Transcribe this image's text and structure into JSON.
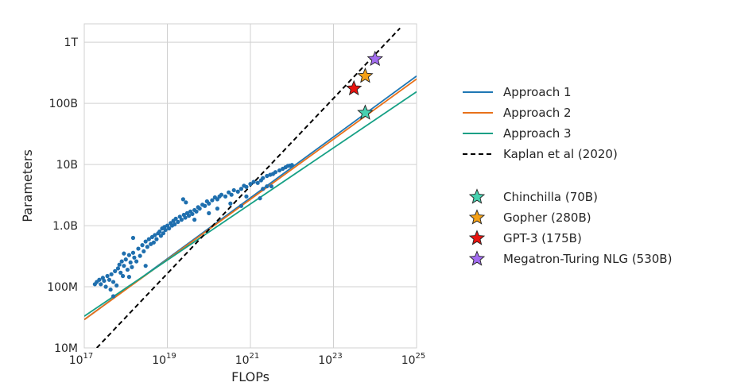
{
  "chart_data": {
    "type": "scatter",
    "xlabel": "FLOPs",
    "ylabel": "Parameters",
    "x_scale": "log",
    "y_scale": "log",
    "xlim": [
      1e+17,
      1e+25
    ],
    "ylim": [
      10000000.0,
      2000000000000.0
    ],
    "grid": true,
    "legend_position": "right",
    "x_ticks": [
      {
        "value": 1e+17,
        "base": "10",
        "exp": "17"
      },
      {
        "value": 1e+19,
        "base": "10",
        "exp": "19"
      },
      {
        "value": 1e+21,
        "base": "10",
        "exp": "21"
      },
      {
        "value": 1e+23,
        "base": "10",
        "exp": "23"
      },
      {
        "value": 1e+25,
        "base": "10",
        "exp": "25"
      }
    ],
    "y_ticks": [
      {
        "value": 10000000.0,
        "label": "10M"
      },
      {
        "value": 100000000.0,
        "label": "100M"
      },
      {
        "value": 1000000000.0,
        "label": "1.0B"
      },
      {
        "value": 10000000000.0,
        "label": "10B"
      },
      {
        "value": 100000000000.0,
        "label": "100B"
      },
      {
        "value": 1000000000000.0,
        "label": "1T"
      }
    ],
    "series": [
      {
        "name": "Approach 1",
        "kind": "line",
        "color": "#1f77b4",
        "style": "solid",
        "x": [
          1e+17,
          1e+25
        ],
        "y": [
          29000000.0,
          280000000000.0
        ]
      },
      {
        "name": "Approach 2",
        "kind": "line",
        "color": "#e8711a",
        "style": "solid",
        "x": [
          1e+17,
          1e+25
        ],
        "y": [
          29000000.0,
          250000000000.0
        ]
      },
      {
        "name": "Approach 3",
        "kind": "line",
        "color": "#16a085",
        "style": "solid",
        "x": [
          1e+17,
          1e+25
        ],
        "y": [
          33000000.0,
          155000000000.0
        ]
      },
      {
        "name": "Kaplan et al (2020)",
        "kind": "line",
        "color": "#000000",
        "style": "dashed",
        "x": [
          2e+17,
          4e+24
        ],
        "y": [
          10000000.0,
          1700000000000.0
        ]
      }
    ],
    "models": [
      {
        "name": "Chinchilla (70B)",
        "color": "#48d1b0",
        "x": 5.8e+23,
        "y": 70000000000.0
      },
      {
        "name": "Gopher (280B)",
        "color": "#f5a015",
        "x": 5.8e+23,
        "y": 280000000000.0
      },
      {
        "name": "GPT-3 (175B)",
        "color": "#e8130f",
        "x": 3.1e+23,
        "y": 175000000000.0
      },
      {
        "name": "Megatron-Turing NLG (530B)",
        "color": "#a26cf0",
        "x": 1e+24,
        "y": 530000000000.0
      }
    ],
    "scatter_color": "#1f6fae",
    "scatter_points": [
      [
        1.8e+17,
        110000000.0
      ],
      [
        2e+17,
        120000000.0
      ],
      [
        2.3e+17,
        130000000.0
      ],
      [
        2.5e+17,
        110000000.0
      ],
      [
        2.8e+17,
        140000000.0
      ],
      [
        3e+17,
        125000000.0
      ],
      [
        3.3e+17,
        100000000.0
      ],
      [
        3.6e+17,
        150000000.0
      ],
      [
        4e+17,
        130000000.0
      ],
      [
        4.3e+17,
        90000000.0
      ],
      [
        4.5e+17,
        160000000.0
      ],
      [
        5e+17,
        120000000.0
      ],
      [
        5.5e+17,
        180000000.0
      ],
      [
        6e+17,
        105000000.0
      ],
      [
        6.5e+17,
        200000000.0
      ],
      [
        7e+17,
        230000000.0
      ],
      [
        7.5e+17,
        170000000.0
      ],
      [
        8e+17,
        260000000.0
      ],
      [
        8.5e+17,
        150000000.0
      ],
      [
        9e+17,
        220000000.0
      ],
      [
        1e+18,
        280000000.0
      ],
      [
        1.1e+18,
        190000000.0
      ],
      [
        1.2e+18,
        330000000.0
      ],
      [
        1.3e+18,
        250000000.0
      ],
      [
        1.4e+18,
        210000000.0
      ],
      [
        1.5e+18,
        360000000.0
      ],
      [
        1.6e+18,
        300000000.0
      ],
      [
        1.8e+18,
        260000000.0
      ],
      [
        2e+18,
        420000000.0
      ],
      [
        2.2e+18,
        320000000.0
      ],
      [
        2.5e+18,
        480000000.0
      ],
      [
        2.7e+18,
        380000000.0
      ],
      [
        3e+18,
        550000000.0
      ],
      [
        3.3e+18,
        450000000.0
      ],
      [
        3.6e+18,
        600000000.0
      ],
      [
        4e+18,
        500000000.0
      ],
      [
        4.3e+18,
        650000000.0
      ],
      [
        4.7e+18,
        530000000.0
      ],
      [
        5e+18,
        700000000.0
      ],
      [
        5.5e+18,
        600000000.0
      ],
      [
        6e+18,
        750000000.0
      ],
      [
        6.5e+18,
        800000000.0
      ],
      [
        7e+18,
        680000000.0
      ],
      [
        7.5e+18,
        900000000.0
      ],
      [
        8e+18,
        750000000.0
      ],
      [
        8.5e+18,
        950000000.0
      ],
      [
        9e+18,
        850000000.0
      ],
      [
        1e+19,
        1000000000.0
      ],
      [
        1.1e+19,
        900000000.0
      ],
      [
        1.2e+19,
        1100000000.0
      ],
      [
        1.3e+19,
        1000000000.0
      ],
      [
        1.4e+19,
        1200000000.0
      ],
      [
        1.5e+19,
        1050000000.0
      ],
      [
        1.6e+19,
        1300000000.0
      ],
      [
        1.8e+19,
        1150000000.0
      ],
      [
        2e+19,
        1400000000.0
      ],
      [
        2.2e+19,
        1250000000.0
      ],
      [
        2.5e+19,
        1500000000.0
      ],
      [
        2.7e+19,
        1350000000.0
      ],
      [
        3e+19,
        1600000000.0
      ],
      [
        3.3e+19,
        1450000000.0
      ],
      [
        3.6e+19,
        1700000000.0
      ],
      [
        4e+19,
        1550000000.0
      ],
      [
        4.5e+19,
        1800000000.0
      ],
      [
        5e+19,
        1700000000.0
      ],
      [
        5.5e+19,
        2000000000.0
      ],
      [
        6e+19,
        1900000000.0
      ],
      [
        7e+19,
        2200000000.0
      ],
      [
        8e+19,
        2100000000.0
      ],
      [
        9e+19,
        2500000000.0
      ],
      [
        1e+20,
        2300000000.0
      ],
      [
        1.2e+20,
        2600000000.0
      ],
      [
        1.4e+20,
        2900000000.0
      ],
      [
        1.6e+20,
        2700000000.0
      ],
      [
        1.8e+20,
        3000000000.0
      ],
      [
        2e+20,
        3200000000.0
      ],
      [
        2.5e+20,
        3000000000.0
      ],
      [
        3e+20,
        3500000000.0
      ],
      [
        3.5e+20,
        3200000000.0
      ],
      [
        4e+20,
        3800000000.0
      ],
      [
        5e+20,
        3600000000.0
      ],
      [
        6e+20,
        4000000000.0
      ],
      [
        7e+20,
        4500000000.0
      ],
      [
        8e+20,
        4300000000.0
      ],
      [
        1e+21,
        4800000000.0
      ],
      [
        1.2e+21,
        5200000000.0
      ],
      [
        1.5e+21,
        5000000000.0
      ],
      [
        1.8e+21,
        5500000000.0
      ],
      [
        2e+21,
        6000000000.0
      ],
      [
        2.5e+21,
        6500000000.0
      ],
      [
        3e+21,
        6800000000.0
      ],
      [
        3.5e+21,
        7000000000.0
      ],
      [
        4e+21,
        7500000000.0
      ],
      [
        5e+21,
        8000000000.0
      ],
      [
        6e+21,
        8500000000.0
      ],
      [
        7e+21,
        9000000000.0
      ],
      [
        8e+21,
        9500000000.0
      ],
      [
        9e+21,
        9600000000.0
      ],
      [
        1e+22,
        9800000000.0
      ],
      [
        1.5e+18,
        630000000.0
      ],
      [
        3e+18,
        220000000.0
      ],
      [
        9e+17,
        350000000.0
      ],
      [
        5e+17,
        70000000.0
      ],
      [
        1.2e+18,
        145000000.0
      ],
      [
        2.4e+19,
        2700000000.0
      ],
      [
        2.8e+19,
        2400000000.0
      ],
      [
        1.6e+20,
        1900000000.0
      ],
      [
        3.3e+20,
        2300000000.0
      ],
      [
        1.7e+21,
        2800000000.0
      ],
      [
        2.5e+21,
        4400000000.0
      ],
      [
        3.2e+21,
        4400000000.0
      ],
      [
        6e+20,
        2100000000.0
      ],
      [
        1e+20,
        1600000000.0
      ],
      [
        4.5e+19,
        1250000000.0
      ],
      [
        2e+21,
        4000000000.0
      ],
      [
        8e+20,
        3000000000.0
      ]
    ]
  }
}
